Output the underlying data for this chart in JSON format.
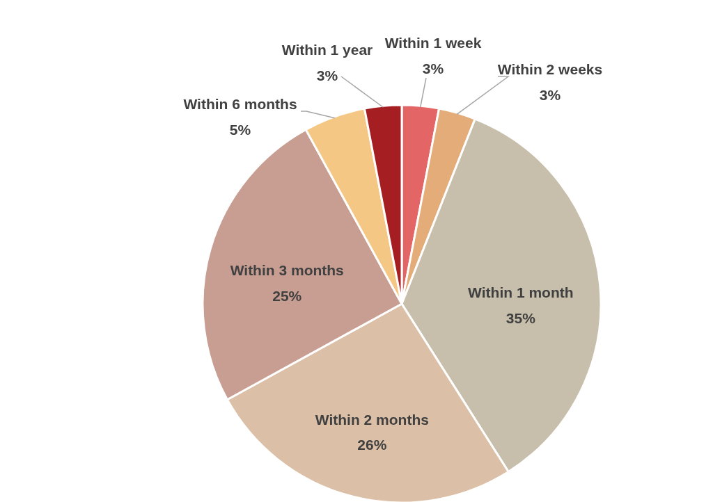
{
  "chart_data": {
    "type": "pie",
    "categories": [
      "Within 1 week",
      "Within 2 weeks",
      "Within 1 month",
      "Within 2 months",
      "Within 3 months",
      "Within 6 months",
      "Within 1 year"
    ],
    "values": [
      3,
      3,
      35,
      26,
      25,
      5,
      3
    ],
    "colors": [
      "#e36565",
      "#e3ac78",
      "#c7bfac",
      "#dbc0a7",
      "#c99e92",
      "#f5c785",
      "#a51e22"
    ],
    "value_labels": [
      "3%",
      "3%",
      "35%",
      "26%",
      "25%",
      "5%",
      "3%"
    ]
  }
}
